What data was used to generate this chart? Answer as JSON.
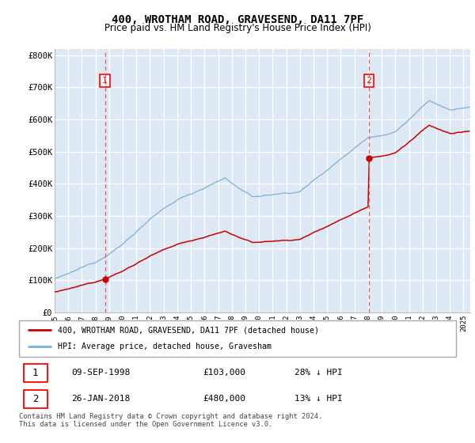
{
  "title": "400, WROTHAM ROAD, GRAVESEND, DA11 7PF",
  "subtitle": "Price paid vs. HM Land Registry's House Price Index (HPI)",
  "ylabel_ticks": [
    "£0",
    "£100K",
    "£200K",
    "£300K",
    "£400K",
    "£500K",
    "£600K",
    "£700K",
    "£800K"
  ],
  "ytick_values": [
    0,
    100000,
    200000,
    300000,
    400000,
    500000,
    600000,
    700000,
    800000
  ],
  "ylim": [
    0,
    820000
  ],
  "xlim_min": 1995,
  "xlim_max": 2025.5,
  "sale1_date": 1998.69,
  "sale1_price": 103000,
  "sale2_date": 2018.07,
  "sale2_price": 480000,
  "hpi_color": "#7bafd4",
  "price_color": "#cc0000",
  "vline_color": "#e85555",
  "dot_color": "#cc0000",
  "bg_color": "#dce9f5",
  "legend_label1": "400, WROTHAM ROAD, GRAVESEND, DA11 7PF (detached house)",
  "legend_label2": "HPI: Average price, detached house, Gravesham",
  "footer": "Contains HM Land Registry data © Crown copyright and database right 2024.\nThis data is licensed under the Open Government Licence v3.0."
}
